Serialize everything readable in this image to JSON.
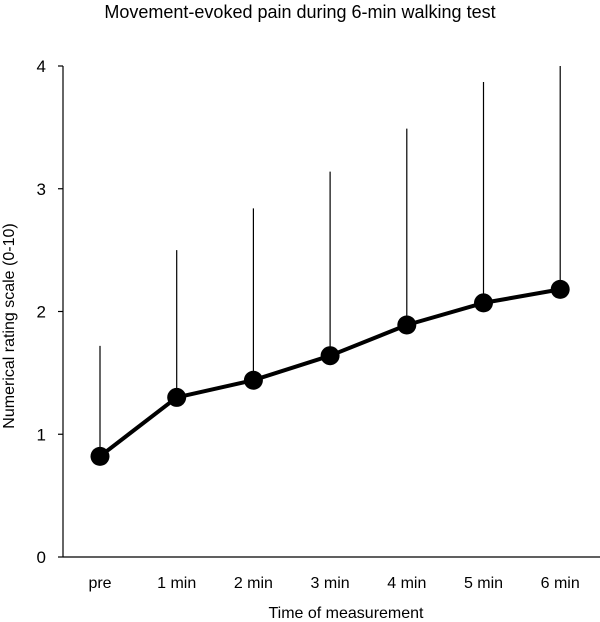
{
  "chart_data": {
    "type": "line",
    "title": "Movement-evoked pain during 6-min walking test",
    "xlabel": "Time of measurement",
    "ylabel": "Numerical rating scale (0-10)",
    "categories": [
      "pre",
      "1 min",
      "2 min",
      "3 min",
      "4 min",
      "5 min",
      "6 min"
    ],
    "series": [
      {
        "values": [
          0.82,
          1.3,
          1.44,
          1.64,
          1.89,
          2.07,
          2.18
        ],
        "error_upper": [
          1.72,
          2.5,
          2.84,
          3.14,
          3.49,
          3.87,
          4.0
        ]
      }
    ],
    "ylim": [
      0,
      4
    ],
    "yticks": [
      0,
      1,
      2,
      3,
      4
    ],
    "grid": false,
    "legend": "none",
    "colors": {
      "line": "#000000",
      "marker": "#000000",
      "errorbar": "#000000"
    }
  }
}
